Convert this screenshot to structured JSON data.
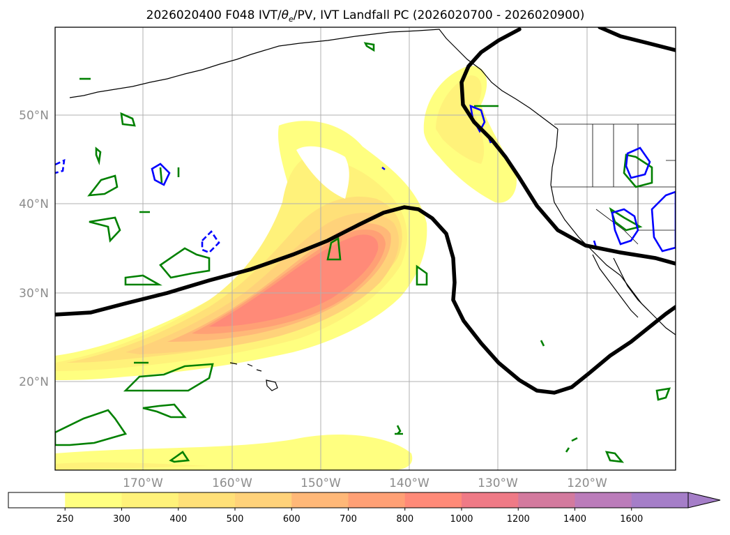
{
  "title": "2026020400 F048 IVT/θe/PV, IVT Landfall PC (2026020700 - 2026020900)",
  "title_parts": {
    "prefix": "2026020400 F048 IVT/",
    "theta": "θ",
    "theta_sub": "e",
    "suffix": "/PV, IVT Landfall PC (2026020700 - 2026020900)"
  },
  "map": {
    "projection": "PlateCarree",
    "lon_range": [
      -180,
      -110
    ],
    "lat_range": [
      10,
      60
    ],
    "lat_ticks": [
      {
        "value": 50,
        "label": "50°N"
      },
      {
        "value": 40,
        "label": "40°N"
      },
      {
        "value": 30,
        "label": "30°N"
      },
      {
        "value": 20,
        "label": "20°N"
      }
    ],
    "lon_ticks": [
      {
        "value": -170,
        "label": "170°W"
      },
      {
        "value": -160,
        "label": "160°W"
      },
      {
        "value": -150,
        "label": "150°W"
      },
      {
        "value": -140,
        "label": "140°W"
      },
      {
        "value": -130,
        "label": "130°W"
      },
      {
        "value": -120,
        "label": "120°W"
      }
    ],
    "grid": true,
    "layers": [
      "IVT shading",
      "theta-e contour",
      "PV contours",
      "coastlines"
    ]
  },
  "colorbar": {
    "orientation": "horizontal",
    "extend": "max",
    "levels": [
      "250",
      "300",
      "400",
      "500",
      "600",
      "700",
      "800",
      "1000",
      "1200",
      "1400",
      "1600"
    ],
    "colors": [
      "#ffffff",
      "#ffff80",
      "#fff27a",
      "#ffe078",
      "#ffd27a",
      "#ffb878",
      "#ffa075",
      "#ff8a78",
      "#ef7a86",
      "#d37a9e",
      "#bb7cba",
      "#a57ec8"
    ]
  },
  "colors": {
    "theta_e_contour": "#000000",
    "pv_green": "#008000",
    "pv_blue": "#0000ff",
    "coastline": "#000000",
    "grid": "#b0b0b0"
  }
}
